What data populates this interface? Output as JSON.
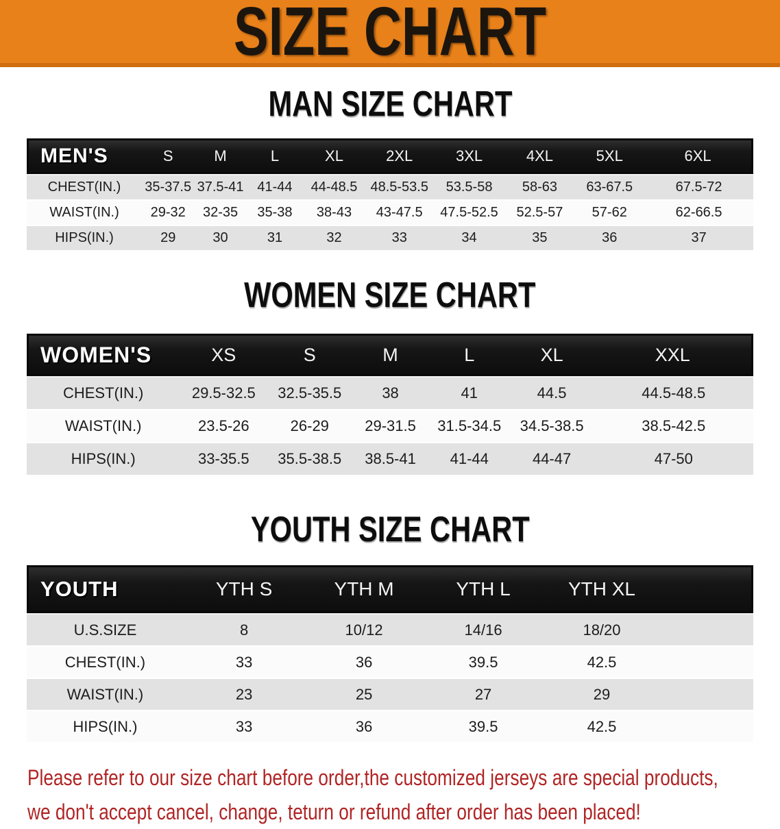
{
  "banner": {
    "title": "SIZE CHART",
    "bg_color": "#E8811A",
    "text_color": "#1B150E"
  },
  "sections": {
    "men": {
      "heading": "MAN SIZE CHART"
    },
    "women": {
      "heading": "WOMEN SIZE CHART"
    },
    "youth": {
      "heading": "YOUTH SIZE CHART"
    }
  },
  "tables": {
    "men": {
      "label": "MEN'S",
      "columns": [
        "S",
        "M",
        "L",
        "XL",
        "2XL",
        "3XL",
        "4XL",
        "5XL",
        "6XL"
      ],
      "rows": [
        {
          "label": "CHEST(IN.)",
          "values": [
            "35-37.5",
            "37.5-41",
            "41-44",
            "44-48.5",
            "48.5-53.5",
            "53.5-58",
            "58-63",
            "63-67.5",
            "67.5-72"
          ]
        },
        {
          "label": "WAIST(IN.)",
          "values": [
            "29-32",
            "32-35",
            "35-38",
            "38-43",
            "43-47.5",
            "47.5-52.5",
            "52.5-57",
            "57-62",
            "62-66.5"
          ]
        },
        {
          "label": "HIPS(IN.)",
          "values": [
            "29",
            "30",
            "31",
            "32",
            "33",
            "34",
            "35",
            "36",
            "37"
          ]
        }
      ]
    },
    "women": {
      "label": "WOMEN'S",
      "columns": [
        "XS",
        "S",
        "M",
        "L",
        "XL",
        "XXL"
      ],
      "rows": [
        {
          "label": "CHEST(IN.)",
          "values": [
            "29.5-32.5",
            "32.5-35.5",
            "38",
            "41",
            "44.5",
            "44.5-48.5"
          ]
        },
        {
          "label": "WAIST(IN.)",
          "values": [
            "23.5-26",
            "26-29",
            "29-31.5",
            "31.5-34.5",
            "34.5-38.5",
            "38.5-42.5"
          ]
        },
        {
          "label": "HIPS(IN.)",
          "values": [
            "33-35.5",
            "35.5-38.5",
            "38.5-41",
            "41-44",
            "44-47",
            "47-50"
          ]
        }
      ]
    },
    "youth": {
      "label": "YOUTH",
      "columns": [
        "YTH S",
        "YTH M",
        "YTH L",
        "YTH XL",
        ""
      ],
      "rows": [
        {
          "label": "U.S.SIZE",
          "values": [
            "8",
            "10/12",
            "14/16",
            "18/20",
            ""
          ]
        },
        {
          "label": "CHEST(IN.)",
          "values": [
            "33",
            "36",
            "39.5",
            "42.5",
            ""
          ]
        },
        {
          "label": "WAIST(IN.)",
          "values": [
            "23",
            "25",
            "27",
            "29",
            ""
          ]
        },
        {
          "label": "HIPS(IN.)",
          "values": [
            "33",
            "36",
            "39.5",
            "42.5",
            ""
          ]
        }
      ]
    }
  },
  "notice": {
    "line1": "Please refer to our size chart before order,the customized jerseys are special products,",
    "line2": "we don't accept cancel, change, teturn or refund after order has been placed!",
    "text_color": "#B02525"
  },
  "colors": {
    "banner_orange": "#E8811A",
    "table_header_black": "#141414",
    "stripe_gray": "#E2E2E2",
    "notice_red": "#B02525"
  }
}
